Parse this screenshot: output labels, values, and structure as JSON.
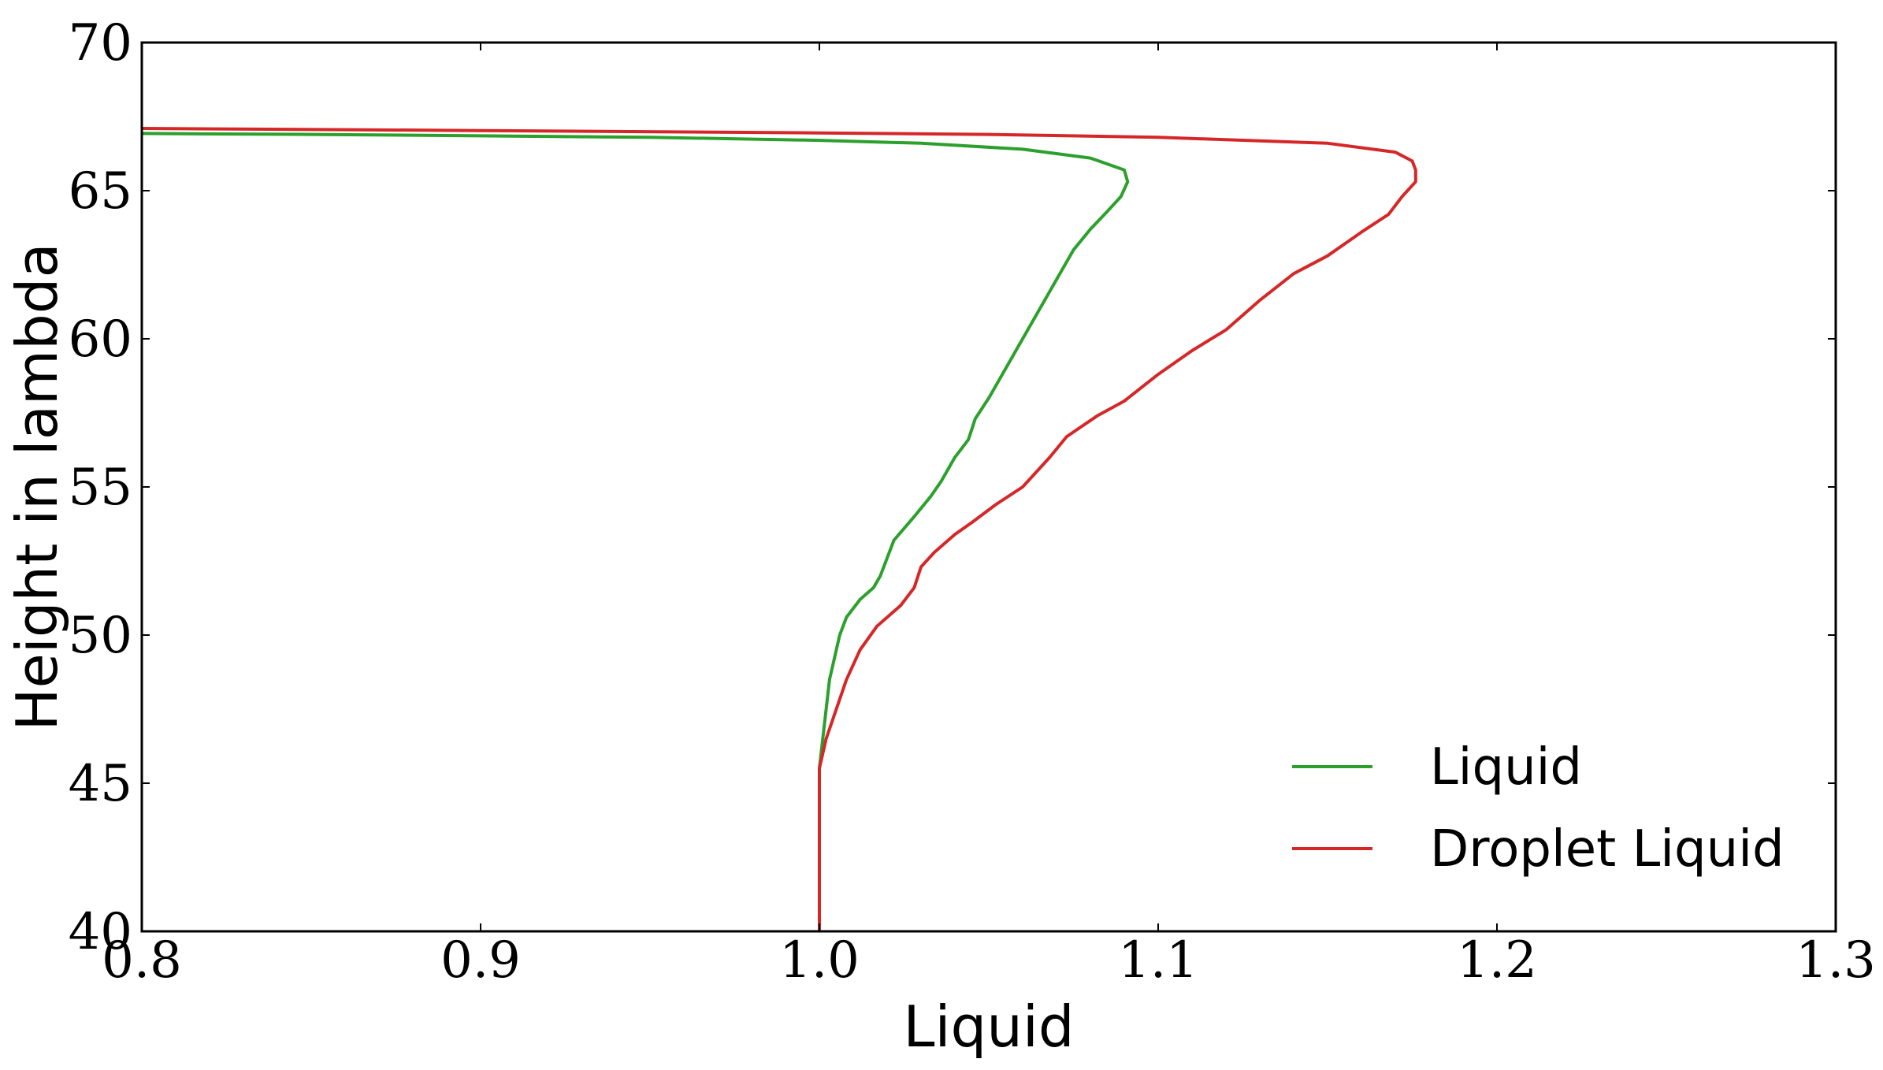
{
  "chart_data": {
    "type": "line",
    "title": "",
    "xlabel": "Liquid",
    "ylabel": "Height in lambda",
    "xlim": [
      0.8,
      1.3
    ],
    "ylim": [
      40,
      70
    ],
    "xticks": [
      "0.8",
      "0.9",
      "1.0",
      "1.1",
      "1.2",
      "1.3"
    ],
    "yticks": [
      "40",
      "45",
      "50",
      "55",
      "60",
      "65",
      "70"
    ],
    "grid": false,
    "legend_position": "lower-right",
    "series": [
      {
        "name": "Liquid",
        "color": "#2ca02c",
        "x": [
          1.0,
          1.0,
          1.0,
          1.001,
          1.002,
          1.003,
          1.004,
          1.006,
          1.008,
          1.012,
          1.016,
          1.018,
          1.02,
          1.022,
          1.028,
          1.033,
          1.036,
          1.04,
          1.044,
          1.046,
          1.05,
          1.055,
          1.06,
          1.065,
          1.07,
          1.075,
          1.08,
          1.085,
          1.089,
          1.091,
          1.09,
          1.08,
          1.06,
          1.03,
          1.0,
          0.95,
          0.9,
          0.85,
          0.8
        ],
        "y": [
          40,
          45,
          45.5,
          46.5,
          47.5,
          48.5,
          49.0,
          50.0,
          50.6,
          51.2,
          51.6,
          52.0,
          52.6,
          53.2,
          54.0,
          54.7,
          55.2,
          56.0,
          56.6,
          57.3,
          58.0,
          59.0,
          60.0,
          61.0,
          62.0,
          63.0,
          63.7,
          64.3,
          64.8,
          65.3,
          65.7,
          66.1,
          66.4,
          66.6,
          66.7,
          66.8,
          66.85,
          66.9,
          66.93
        ]
      },
      {
        "name": "Droplet Liquid",
        "color": "#d62728",
        "x": [
          1.0,
          1.0,
          1.0,
          1.002,
          1.005,
          1.008,
          1.012,
          1.017,
          1.024,
          1.028,
          1.03,
          1.034,
          1.04,
          1.045,
          1.052,
          1.06,
          1.068,
          1.073,
          1.082,
          1.09,
          1.1,
          1.11,
          1.12,
          1.13,
          1.14,
          1.15,
          1.16,
          1.168,
          1.172,
          1.176,
          1.176,
          1.175,
          1.17,
          1.15,
          1.1,
          1.05,
          1.0,
          0.9,
          0.8
        ],
        "y": [
          40,
          45,
          45.5,
          46.5,
          47.5,
          48.5,
          49.5,
          50.3,
          51.0,
          51.6,
          52.3,
          52.8,
          53.4,
          53.8,
          54.4,
          55.0,
          56.0,
          56.7,
          57.4,
          57.9,
          58.8,
          59.6,
          60.3,
          61.3,
          62.2,
          62.8,
          63.6,
          64.2,
          64.8,
          65.3,
          65.7,
          66.0,
          66.3,
          66.6,
          66.8,
          66.9,
          66.95,
          67.03,
          67.1
        ]
      }
    ]
  }
}
